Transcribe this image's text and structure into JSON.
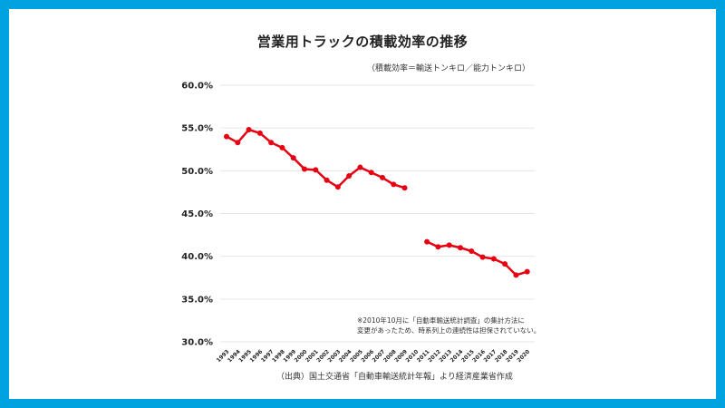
{
  "chart_data": {
    "type": "line",
    "title": "営業用トラックの積載効率の推移",
    "subtitle": "（積載効率＝輸送トンキロ／能力トンキロ）",
    "xlabel": "",
    "ylabel": "",
    "ylim": [
      30,
      60
    ],
    "yticks": [
      "60.0%",
      "55.0%",
      "50.0%",
      "45.0%",
      "40.0%",
      "35.0%",
      "30.0%"
    ],
    "ytick_values": [
      60,
      55,
      50,
      45,
      40,
      35,
      30
    ],
    "grid": true,
    "categories": [
      "1993",
      "1994",
      "1995",
      "1996",
      "1997",
      "1998",
      "1999",
      "2000",
      "2001",
      "2002",
      "2003",
      "2004",
      "2005",
      "2006",
      "2007",
      "2008",
      "2009",
      "2010",
      "2011",
      "2012",
      "2013",
      "2014",
      "2015",
      "2016",
      "2017",
      "2018",
      "2019",
      "2020"
    ],
    "series": [
      {
        "name": "積載効率",
        "color": "#E60012",
        "values": [
          54.0,
          53.3,
          54.8,
          54.4,
          53.3,
          52.7,
          51.5,
          50.2,
          50.1,
          48.9,
          48.1,
          49.4,
          50.4,
          49.8,
          49.2,
          48.4,
          48.0,
          null,
          41.7,
          41.1,
          41.3,
          41.0,
          40.6,
          39.9,
          39.7,
          39.1,
          37.8,
          38.2
        ]
      }
    ],
    "annotations": [
      "※2010年10月に「自動車輸送統計調査」の集計方法に",
      "変更があったため、時系列上の連続性は担保されていない。"
    ],
    "source": "（出典）国土交通省「自動車輸送統計年報」より経済産業省作成"
  },
  "colors": {
    "border": "#00A3E0",
    "line": "#E60012",
    "grid": "#E6E6E6"
  }
}
